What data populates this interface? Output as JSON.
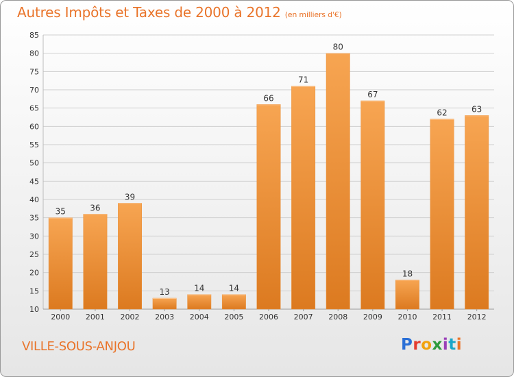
{
  "title": "Autres Impôts et Taxes de 2000 à 2012",
  "unit": "(en milliers d'€)",
  "commune": "VILLE-SOUS-ANJOU",
  "logo": {
    "p": "P",
    "r": "r",
    "o": "o",
    "x": "x",
    "i": "i",
    "t": "t",
    "i2": "i"
  },
  "colors": {
    "accent": "#e9742a",
    "bar_top": "#f7a552",
    "bar_bottom": "#dc7a20",
    "grid": "#cfcfcf"
  },
  "chart_data": {
    "type": "bar",
    "categories": [
      "2000",
      "2001",
      "2002",
      "2003",
      "2004",
      "2005",
      "2006",
      "2007",
      "2008",
      "2009",
      "2010",
      "2011",
      "2012"
    ],
    "values": [
      35,
      36,
      39,
      13,
      14,
      14,
      66,
      71,
      80,
      67,
      18,
      62,
      63
    ],
    "ylim": [
      10,
      85
    ],
    "yticks": [
      10,
      15,
      20,
      25,
      30,
      35,
      40,
      45,
      50,
      55,
      60,
      65,
      70,
      75,
      80,
      85
    ],
    "data_labels": [
      "35",
      "36",
      "39",
      "13",
      "14",
      "14",
      "66",
      "71",
      "80",
      "67",
      "18",
      "62",
      "63"
    ],
    "grid": true
  }
}
